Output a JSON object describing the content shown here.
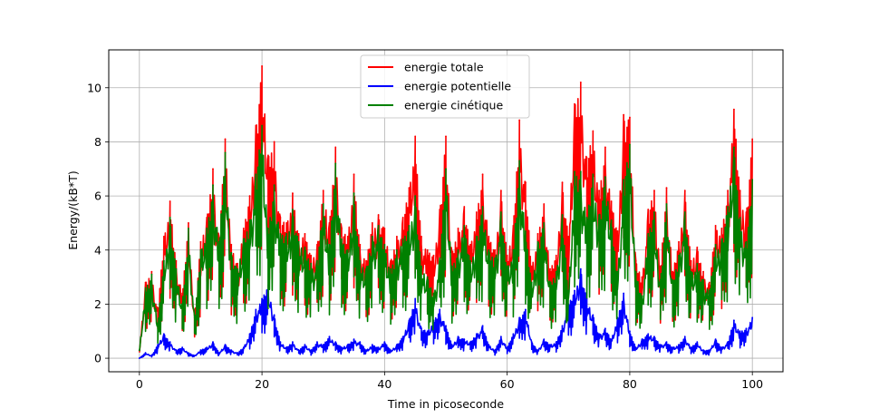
{
  "chart_data": {
    "type": "line",
    "title": "",
    "xlabel": "Time in picoseconde",
    "ylabel": "Energy/(kB*T)",
    "xlim": [
      -5,
      105
    ],
    "ylim": [
      -0.5,
      11.4
    ],
    "xticks": [
      0,
      20,
      40,
      60,
      80,
      100
    ],
    "yticks": [
      0,
      2,
      4,
      6,
      8,
      10
    ],
    "grid": true,
    "legend_position": "top-center",
    "series": [
      {
        "name": "energie totale",
        "color": "#ff0000",
        "x": [
          0,
          1,
          2,
          3,
          4,
          5,
          6,
          7,
          8,
          9,
          10,
          11,
          12,
          13,
          14,
          15,
          16,
          17,
          18,
          19,
          20,
          21,
          22,
          23,
          24,
          25,
          26,
          27,
          28,
          29,
          30,
          31,
          32,
          33,
          34,
          35,
          36,
          37,
          38,
          39,
          40,
          41,
          42,
          43,
          44,
          45,
          46,
          47,
          48,
          49,
          50,
          51,
          52,
          53,
          54,
          55,
          56,
          57,
          58,
          59,
          60,
          61,
          62,
          63,
          64,
          65,
          66,
          67,
          68,
          69,
          70,
          71,
          72,
          73,
          74,
          75,
          76,
          77,
          78,
          79,
          80,
          81,
          82,
          83,
          84,
          85,
          86,
          87,
          88,
          89,
          90,
          91,
          92,
          93,
          94,
          95,
          96,
          97,
          98,
          99,
          100
        ],
        "values": [
          0.3,
          2.8,
          3.2,
          1.8,
          4.5,
          5.8,
          3.6,
          2.4,
          5.0,
          1.6,
          4.3,
          5.2,
          7.0,
          4.5,
          8.1,
          4.2,
          3.5,
          4.8,
          6.0,
          8.6,
          10.8,
          7.5,
          8.0,
          5.2,
          5.0,
          6.1,
          4.6,
          4.6,
          3.8,
          4.2,
          6.2,
          5.0,
          7.8,
          4.8,
          4.5,
          6.8,
          4.2,
          3.6,
          5.0,
          5.3,
          4.8,
          3.6,
          4.5,
          5.2,
          6.3,
          8.2,
          4.5,
          4.0,
          3.8,
          5.5,
          8.2,
          3.9,
          4.8,
          5.6,
          4.2,
          5.4,
          6.8,
          4.5,
          4.0,
          6.2,
          3.8,
          4.9,
          8.8,
          6.5,
          3.4,
          4.6,
          5.7,
          3.3,
          3.8,
          6.5,
          4.5,
          9.4,
          10.2,
          7.4,
          8.4,
          6.2,
          7.8,
          5.8,
          4.7,
          9.0,
          8.9,
          3.6,
          3.0,
          5.5,
          6.2,
          3.4,
          6.3,
          3.2,
          4.3,
          6.2,
          3.6,
          4.1,
          3.2,
          2.8,
          4.9,
          4.8,
          6.2,
          9.2,
          6.2,
          5.4,
          8.1
        ]
      },
      {
        "name": "energie potentielle",
        "color": "#0000ff",
        "x": [
          0,
          1,
          2,
          3,
          4,
          5,
          6,
          7,
          8,
          9,
          10,
          11,
          12,
          13,
          14,
          15,
          16,
          17,
          18,
          19,
          20,
          21,
          22,
          23,
          24,
          25,
          26,
          27,
          28,
          29,
          30,
          31,
          32,
          33,
          34,
          35,
          36,
          37,
          38,
          39,
          40,
          41,
          42,
          43,
          44,
          45,
          46,
          47,
          48,
          49,
          50,
          51,
          52,
          53,
          54,
          55,
          56,
          57,
          58,
          59,
          60,
          61,
          62,
          63,
          64,
          65,
          66,
          67,
          68,
          69,
          70,
          71,
          72,
          73,
          74,
          75,
          76,
          77,
          78,
          79,
          80,
          81,
          82,
          83,
          84,
          85,
          86,
          87,
          88,
          89,
          90,
          91,
          92,
          93,
          94,
          95,
          96,
          97,
          98,
          99,
          100
        ],
        "values": [
          0.0,
          0.2,
          0.1,
          0.5,
          0.9,
          0.6,
          0.3,
          0.4,
          0.2,
          0.1,
          0.3,
          0.4,
          0.6,
          0.2,
          0.5,
          0.3,
          0.2,
          0.4,
          0.9,
          1.8,
          2.2,
          2.7,
          1.6,
          0.6,
          0.4,
          0.6,
          0.3,
          0.5,
          0.3,
          0.6,
          0.5,
          0.8,
          0.6,
          0.4,
          0.5,
          0.7,
          0.6,
          0.3,
          0.5,
          0.4,
          0.6,
          0.3,
          0.5,
          0.8,
          1.4,
          2.2,
          1.1,
          1.0,
          1.4,
          1.8,
          1.2,
          0.5,
          0.8,
          0.7,
          0.6,
          0.9,
          1.2,
          0.5,
          0.3,
          0.8,
          0.4,
          0.9,
          1.5,
          1.8,
          0.6,
          0.3,
          0.7,
          0.5,
          0.6,
          1.2,
          2.0,
          2.5,
          3.3,
          2.2,
          1.6,
          0.9,
          1.1,
          0.7,
          1.5,
          2.4,
          1.0,
          0.4,
          0.7,
          0.9,
          0.8,
          0.5,
          0.6,
          0.4,
          0.5,
          0.8,
          0.4,
          0.6,
          0.3,
          0.3,
          0.7,
          0.4,
          0.6,
          1.4,
          1.0,
          1.1,
          1.5
        ]
      },
      {
        "name": "energie cinétique",
        "color": "#008000",
        "x": [
          0,
          1,
          2,
          3,
          4,
          5,
          6,
          7,
          8,
          9,
          10,
          11,
          12,
          13,
          14,
          15,
          16,
          17,
          18,
          19,
          20,
          21,
          22,
          23,
          24,
          25,
          26,
          27,
          28,
          29,
          30,
          31,
          32,
          33,
          34,
          35,
          36,
          37,
          38,
          39,
          40,
          41,
          42,
          43,
          44,
          45,
          46,
          47,
          48,
          49,
          50,
          51,
          52,
          53,
          54,
          55,
          56,
          57,
          58,
          59,
          60,
          61,
          62,
          63,
          64,
          65,
          66,
          67,
          68,
          69,
          70,
          71,
          72,
          73,
          74,
          75,
          76,
          77,
          78,
          79,
          80,
          81,
          82,
          83,
          84,
          85,
          86,
          87,
          88,
          89,
          90,
          91,
          92,
          93,
          94,
          95,
          96,
          97,
          98,
          99,
          100
        ],
        "values": [
          0.3,
          2.6,
          3.1,
          1.3,
          3.6,
          5.2,
          3.3,
          2.0,
          4.8,
          1.5,
          4.0,
          4.8,
          6.4,
          4.3,
          7.6,
          3.9,
          3.3,
          4.4,
          5.1,
          6.8,
          8.6,
          4.8,
          6.4,
          4.6,
          4.6,
          5.5,
          4.3,
          4.1,
          3.5,
          3.6,
          5.7,
          4.2,
          7.2,
          4.4,
          4.0,
          6.1,
          3.6,
          3.3,
          4.5,
          4.9,
          4.2,
          3.3,
          4.0,
          4.4,
          4.9,
          6.0,
          3.4,
          3.0,
          2.4,
          3.7,
          7.0,
          3.4,
          4.0,
          4.9,
          3.6,
          4.5,
          5.6,
          4.0,
          3.7,
          5.4,
          3.4,
          4.0,
          7.3,
          4.7,
          2.8,
          4.3,
          5.0,
          2.8,
          3.2,
          5.3,
          2.5,
          6.9,
          6.9,
          5.2,
          6.8,
          5.3,
          6.7,
          5.1,
          3.2,
          6.6,
          7.9,
          3.2,
          2.3,
          4.6,
          5.4,
          2.9,
          5.7,
          2.8,
          3.8,
          5.4,
          3.2,
          3.5,
          2.9,
          2.5,
          4.2,
          4.4,
          5.6,
          7.8,
          5.2,
          4.3,
          6.6
        ]
      }
    ]
  }
}
